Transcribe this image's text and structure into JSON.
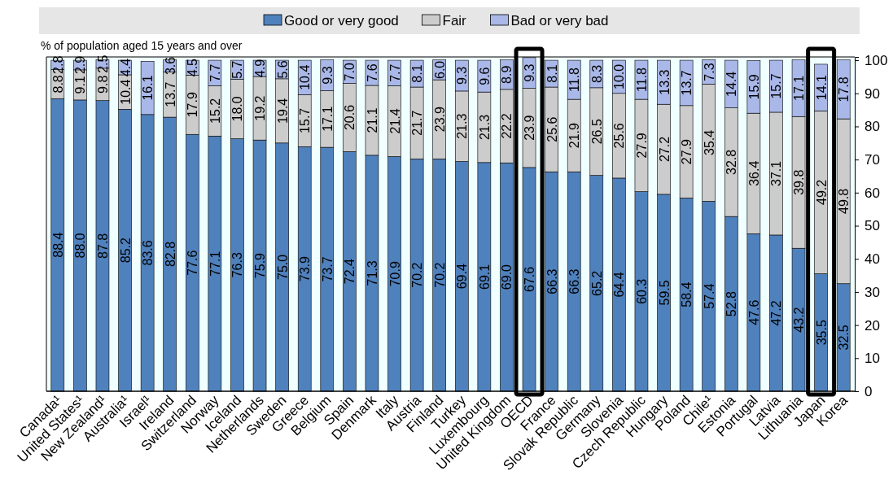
{
  "chart_data": {
    "type": "bar",
    "stacked": true,
    "ylabel": "% of population aged 15 years and over",
    "categories": [
      "Canada¹",
      "United States¹",
      "New Zealand¹",
      "Australia¹",
      "Israel¹",
      "Ireland",
      "Switzerland",
      "Norway",
      "Iceland",
      "Netherlands",
      "Sweden",
      "Greece",
      "Belgium",
      "Spain",
      "Denmark",
      "Italy",
      "Austria",
      "Finland",
      "Turkey",
      "Luxembourg",
      "United Kingdom",
      "OECD",
      "France",
      "Slovak Republic",
      "Germany",
      "Slovenia",
      "Czech Republic",
      "Hungary",
      "Poland",
      "Chile¹",
      "Estonia",
      "Portugal",
      "Latvia",
      "Lithuania",
      "Japan",
      "Korea"
    ],
    "series": [
      {
        "name": "Good or very good",
        "color": "#4f81bd",
        "values": [
          88.4,
          88.0,
          87.8,
          85.2,
          83.6,
          82.8,
          77.6,
          77.1,
          76.3,
          75.9,
          75.0,
          73.9,
          73.7,
          72.4,
          71.3,
          70.9,
          70.2,
          70.2,
          69.4,
          69.1,
          69.0,
          67.6,
          66.3,
          66.3,
          65.2,
          64.4,
          60.3,
          59.5,
          58.4,
          57.4,
          52.8,
          47.6,
          47.2,
          43.2,
          35.5,
          32.5
        ],
        "value_labels": [
          "88.4",
          "88.0",
          "87.8",
          "85.2",
          "83.6",
          "82.8",
          "77.6",
          "77.1",
          "76.3",
          "75.9",
          "75.0",
          "73.9",
          "73.7",
          "72.4",
          "71.3",
          "70.9",
          "70.2",
          "70.2",
          "69.4",
          "69.1",
          "69.0",
          "67.6",
          "66.3",
          "66.3",
          "65.2",
          "64.4",
          "60.3",
          "59.5",
          "58.4",
          "57.4",
          "52.8",
          "47.6",
          "47.2",
          "43.2",
          "35.5",
          "32.5"
        ]
      },
      {
        "name": "Fair",
        "color": "#cccccc",
        "values": [
          8.8,
          9.1,
          9.8,
          10.4,
          null,
          13.7,
          17.9,
          15.2,
          18.0,
          19.2,
          19.4,
          15.7,
          17.1,
          20.6,
          21.1,
          21.4,
          21.7,
          23.9,
          21.3,
          21.3,
          22.2,
          23.9,
          25.6,
          21.9,
          26.5,
          25.6,
          27.9,
          27.2,
          27.9,
          35.4,
          32.8,
          36.4,
          37.1,
          39.8,
          49.2,
          49.8
        ],
        "value_labels": [
          "8.8",
          "9.1",
          "9.8",
          "10.4",
          null,
          "13.7",
          "17.9",
          "15.2",
          "18.0",
          "19.2",
          "19.4",
          "15.7",
          "17.1",
          "20.6",
          "21.1",
          "21.4",
          "21.7",
          "23.9",
          "21.3",
          "21.3",
          "22.2",
          "23.9",
          "25.6",
          "21.9",
          "26.5",
          "25.6",
          "27.9",
          "27.2",
          "27.9",
          "35.4",
          "32.8",
          "36.4",
          "37.1",
          "39.8",
          "49.2",
          "49.8"
        ]
      },
      {
        "name": "Bad or very bad",
        "color": "#a9b8e8",
        "values": [
          2.8,
          2.9,
          2.5,
          4.4,
          16.1,
          3.6,
          4.5,
          7.7,
          5.7,
          4.9,
          5.6,
          10.4,
          9.3,
          7.0,
          7.6,
          7.7,
          8.1,
          6.0,
          9.3,
          9.6,
          8.9,
          9.3,
          8.1,
          11.8,
          8.3,
          10.0,
          11.8,
          13.3,
          13.7,
          7.3,
          14.4,
          15.9,
          15.7,
          17.1,
          14.1,
          17.8
        ],
        "value_labels": [
          "2.8",
          "2.9",
          "2.5",
          "4.4",
          "16.1",
          "3.6",
          "4.5",
          "7.7",
          "5.7",
          "4.9",
          "5.6",
          "10.4",
          "9.3",
          "7.0",
          "7.6",
          "7.7",
          "8.1",
          "6.0",
          "9.3",
          "9.6",
          "8.9",
          "9.3",
          "8.1",
          "11.8",
          "8.3",
          "10.0",
          "11.8",
          "13.3",
          "13.7",
          "7.3",
          "14.4",
          "15.9",
          "15.7",
          "17.1",
          "14.1",
          "17.8"
        ]
      }
    ],
    "ylim": [
      0,
      101
    ],
    "yticks": [
      0,
      10,
      20,
      30,
      40,
      50,
      60,
      70,
      80,
      90,
      100
    ],
    "legend": "top",
    "grid": false
  }
}
